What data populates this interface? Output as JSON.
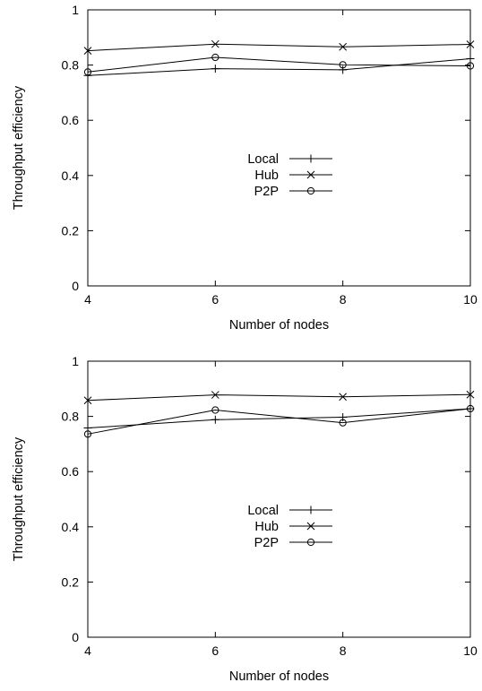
{
  "chart_data": [
    {
      "type": "line",
      "xlabel": "Number of nodes",
      "ylabel": "Throughput efficiency",
      "xlim": [
        4,
        10
      ],
      "ylim": [
        0,
        1
      ],
      "xticks": [
        4,
        6,
        8,
        10
      ],
      "yticks": [
        0,
        0.2,
        0.4,
        0.6,
        0.8,
        1
      ],
      "ytick_labels": [
        "0",
        "0.2",
        "0.4",
        "0.6",
        "0.8",
        "1"
      ],
      "x": [
        4,
        6,
        8,
        10
      ],
      "legend_position": "center",
      "grid": false,
      "series": [
        {
          "name": "Local",
          "marker": "plus",
          "values": [
            0.762,
            0.787,
            0.783,
            0.823
          ]
        },
        {
          "name": "Hub",
          "marker": "cross",
          "values": [
            0.852,
            0.876,
            0.866,
            0.875
          ]
        },
        {
          "name": "P2P",
          "marker": "circle",
          "values": [
            0.775,
            0.828,
            0.801,
            0.797
          ]
        }
      ]
    },
    {
      "type": "line",
      "xlabel": "Number of nodes",
      "ylabel": "Throughput efficiency",
      "xlim": [
        4,
        10
      ],
      "ylim": [
        0,
        1
      ],
      "xticks": [
        4,
        6,
        8,
        10
      ],
      "yticks": [
        0,
        0.2,
        0.4,
        0.6,
        0.8,
        1
      ],
      "ytick_labels": [
        "0",
        "0.2",
        "0.4",
        "0.6",
        "0.8",
        "1"
      ],
      "x": [
        4,
        6,
        8,
        10
      ],
      "legend_position": "center",
      "grid": false,
      "series": [
        {
          "name": "Local",
          "marker": "plus",
          "values": [
            0.758,
            0.788,
            0.797,
            0.828
          ]
        },
        {
          "name": "Hub",
          "marker": "cross",
          "values": [
            0.858,
            0.878,
            0.871,
            0.879
          ]
        },
        {
          "name": "P2P",
          "marker": "circle",
          "values": [
            0.736,
            0.823,
            0.777,
            0.828
          ]
        }
      ]
    }
  ]
}
